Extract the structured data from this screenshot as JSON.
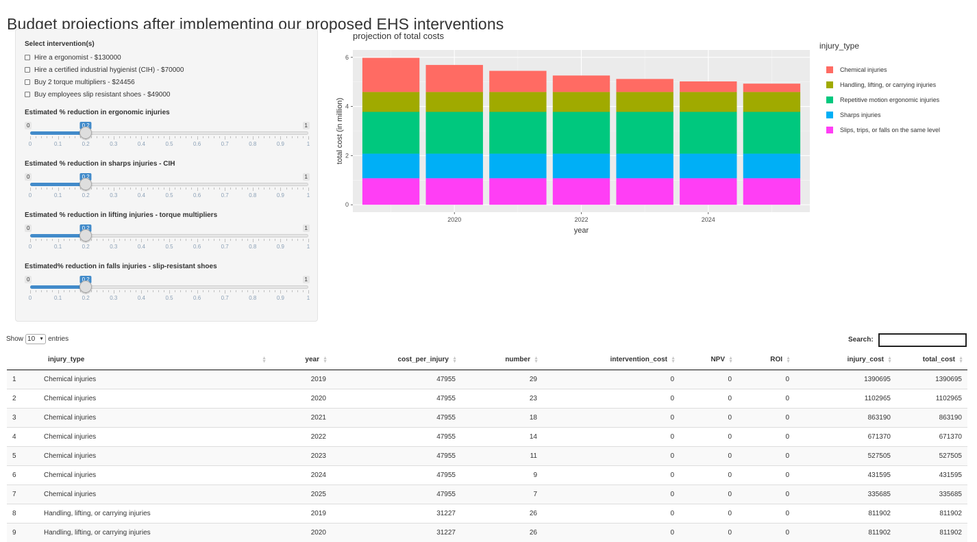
{
  "page": {
    "title": "Budget projections after implementing our proposed EHS interventions"
  },
  "sidebar": {
    "interventions_label": "Select intervention(s)",
    "interventions": [
      {
        "label": "Hire a ergonomist - $130000",
        "checked": false
      },
      {
        "label": "Hire a certified industrial hygienist (CIH) - $70000",
        "checked": false
      },
      {
        "label": "Buy 2 torque multipliers - $24456",
        "checked": false
      },
      {
        "label": "Buy employees slip resistant shoes - $49000",
        "checked": false
      }
    ],
    "sliders": [
      {
        "label": "Estimated % reduction in ergonomic injuries",
        "min": "0",
        "max": "1",
        "value": "0.2"
      },
      {
        "label": "Estimated % reduction in sharps injuries - CIH",
        "min": "0",
        "max": "1",
        "value": "0.2"
      },
      {
        "label": "Estimated % reduction in lifting injuries - torque multipliers",
        "min": "0",
        "max": "1",
        "value": "0.2"
      },
      {
        "label": "Estimated% reduction in falls injuries - slip-resistant shoes",
        "min": "0",
        "max": "1",
        "value": "0.2"
      }
    ],
    "slider_ticks": [
      "0",
      "0.1",
      "0.2",
      "0.3",
      "0.4",
      "0.5",
      "0.6",
      "0.7",
      "0.8",
      "0.9",
      "1"
    ]
  },
  "chart_data": {
    "type": "bar",
    "stacked": true,
    "title": "projection of total costs",
    "xlabel": "year",
    "ylabel": "total cost (in million)",
    "x": [
      2019,
      2020,
      2021,
      2022,
      2023,
      2024,
      2025
    ],
    "x_ticks": [
      "2020",
      "2022",
      "2024"
    ],
    "y_ticks": [
      "0",
      "2",
      "4",
      "6"
    ],
    "ylim": [
      -0.3,
      6.3
    ],
    "grid": true,
    "legend_title": "injury_type",
    "legend_position": "right",
    "series": [
      {
        "name": "Slips, trips, or falls on the same level",
        "color": "#ff3ef5",
        "values": [
          1.08,
          1.08,
          1.08,
          1.08,
          1.08,
          1.08,
          1.08
        ]
      },
      {
        "name": "Sharps injuries",
        "color": "#00aff6",
        "values": [
          1.0,
          1.0,
          1.0,
          1.0,
          1.0,
          1.0,
          1.0
        ]
      },
      {
        "name": "Repetitive motion ergonomic injuries",
        "color": "#00c87e",
        "values": [
          1.7,
          1.7,
          1.7,
          1.7,
          1.7,
          1.7,
          1.7
        ]
      },
      {
        "name": "Handling, lifting, or carrying injuries",
        "color": "#a0aa00",
        "values": [
          0.81,
          0.81,
          0.81,
          0.81,
          0.81,
          0.81,
          0.81
        ]
      },
      {
        "name": "Chemical injuries",
        "color": "#ff6b63",
        "values": [
          1.39,
          1.1,
          0.86,
          0.67,
          0.53,
          0.43,
          0.34
        ]
      }
    ],
    "legend_order": [
      "Chemical injuries",
      "Handling, lifting, or carrying injuries",
      "Repetitive motion ergonomic injuries",
      "Sharps injuries",
      "Slips, trips, or falls on the same level"
    ]
  },
  "table": {
    "show_label": "Show",
    "entries_value": "10",
    "entries_label": "entries",
    "search_label": "Search:",
    "columns": [
      "",
      "injury_type",
      "year",
      "cost_per_injury",
      "number",
      "intervention_cost",
      "NPV",
      "ROI",
      "injury_cost",
      "total_cost"
    ],
    "rows": [
      [
        "1",
        "Chemical injuries",
        "2019",
        "47955",
        "29",
        "0",
        "0",
        "0",
        "1390695",
        "1390695"
      ],
      [
        "2",
        "Chemical injuries",
        "2020",
        "47955",
        "23",
        "0",
        "0",
        "0",
        "1102965",
        "1102965"
      ],
      [
        "3",
        "Chemical injuries",
        "2021",
        "47955",
        "18",
        "0",
        "0",
        "0",
        "863190",
        "863190"
      ],
      [
        "4",
        "Chemical injuries",
        "2022",
        "47955",
        "14",
        "0",
        "0",
        "0",
        "671370",
        "671370"
      ],
      [
        "5",
        "Chemical injuries",
        "2023",
        "47955",
        "11",
        "0",
        "0",
        "0",
        "527505",
        "527505"
      ],
      [
        "6",
        "Chemical injuries",
        "2024",
        "47955",
        "9",
        "0",
        "0",
        "0",
        "431595",
        "431595"
      ],
      [
        "7",
        "Chemical injuries",
        "2025",
        "47955",
        "7",
        "0",
        "0",
        "0",
        "335685",
        "335685"
      ],
      [
        "8",
        "Handling, lifting, or carrying injuries",
        "2019",
        "31227",
        "26",
        "0",
        "0",
        "0",
        "811902",
        "811902"
      ],
      [
        "9",
        "Handling, lifting, or carrying injuries",
        "2020",
        "31227",
        "26",
        "0",
        "0",
        "0",
        "811902",
        "811902"
      ]
    ]
  }
}
